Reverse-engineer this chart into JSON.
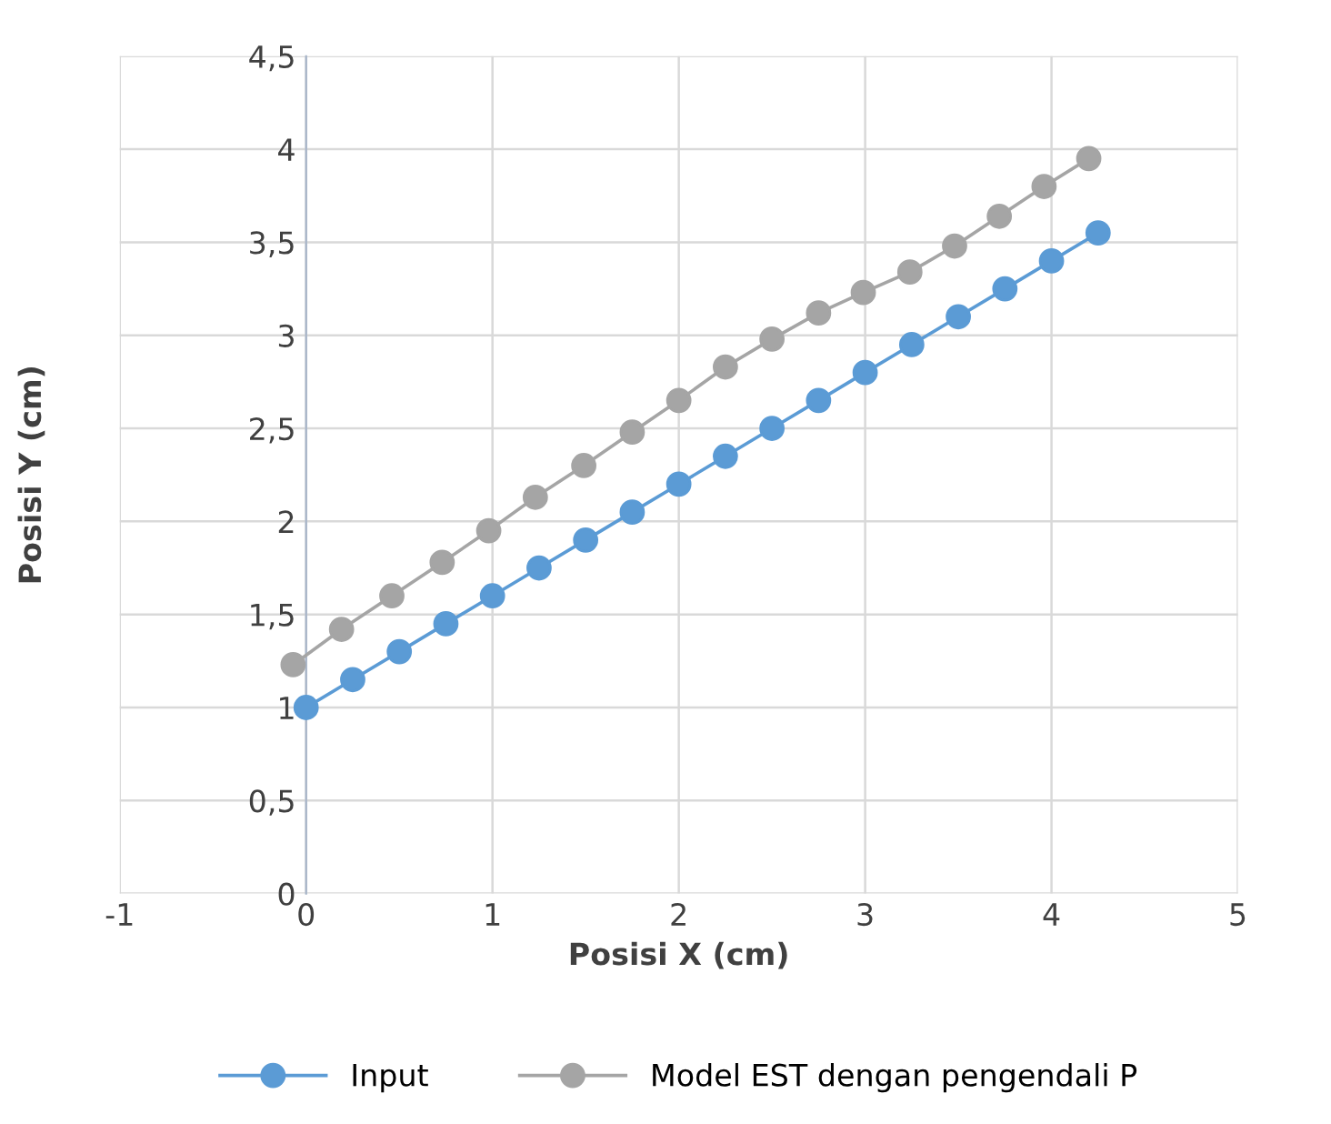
{
  "chart_data": {
    "type": "line",
    "xlabel": "Posisi X (cm)",
    "ylabel": "Posisi Y (cm)",
    "xlim": [
      -1,
      5
    ],
    "xticks": [
      -1,
      0,
      1,
      2,
      3,
      4,
      5
    ],
    "ylim": [
      0,
      4.5
    ],
    "yticks": [
      0,
      {
        "value": 0.5,
        "label": "0,5"
      },
      1,
      {
        "value": 1.5,
        "label": "1,5"
      },
      2,
      {
        "value": 2.5,
        "label": "2,5"
      },
      3,
      {
        "value": 3.5,
        "label": "3,5"
      },
      4,
      {
        "value": 4.5,
        "label": "4,5"
      }
    ],
    "grid": true,
    "legend": "bottom",
    "marker": "circle",
    "line_style": "solid",
    "series": [
      {
        "name": "Input",
        "color": "#5b9bd5",
        "x": [
          0,
          0.25,
          0.5,
          0.75,
          1,
          1.25,
          1.5,
          1.75,
          2,
          2.25,
          2.5,
          2.75,
          3,
          3.25,
          3.5,
          3.75,
          4,
          4.25
        ],
        "values": [
          1,
          1.15,
          1.3,
          1.45,
          1.6,
          1.75,
          1.9,
          2.05,
          2.2,
          2.35,
          2.5,
          2.65,
          2.8,
          2.95,
          3.1,
          3.25,
          3.4,
          3.55
        ]
      },
      {
        "name": "Model EST dengan pengendali P",
        "color": "#a5a5a5",
        "x": [
          -0.07,
          0.19,
          0.46,
          0.73,
          0.98,
          1.23,
          1.49,
          1.75,
          2.0,
          2.25,
          2.5,
          2.75,
          2.99,
          3.24,
          3.48,
          3.72,
          3.96,
          4.2
        ],
        "values": [
          1.23,
          1.42,
          1.6,
          1.78,
          1.95,
          2.13,
          2.3,
          2.48,
          2.65,
          2.83,
          2.98,
          3.12,
          3.23,
          3.34,
          3.48,
          3.64,
          3.8,
          3.95
        ]
      }
    ]
  }
}
